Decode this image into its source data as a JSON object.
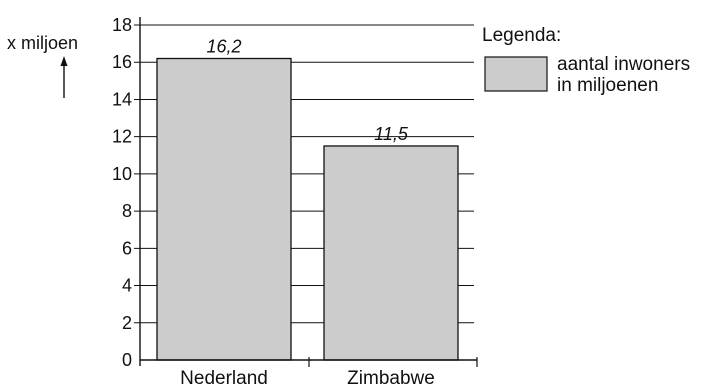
{
  "chart_data": {
    "type": "bar",
    "categories": [
      "Nederland",
      "Zimbabwe"
    ],
    "values": [
      16.2,
      11.5
    ],
    "data_labels": [
      "16,2",
      "11,5"
    ],
    "ylabel": "x miljoen",
    "ylim": [
      0,
      18
    ],
    "yticks": [
      0,
      2,
      4,
      6,
      8,
      10,
      12,
      14,
      16,
      18
    ],
    "grid": true,
    "legend_position": "top-right",
    "legend": {
      "title": "Legenda:",
      "entry_lines": [
        "aantal inwoners",
        "in miljoenen"
      ]
    },
    "colors": {
      "bar": "#cccccc",
      "outline": "#111111",
      "grid": "#111111"
    }
  }
}
